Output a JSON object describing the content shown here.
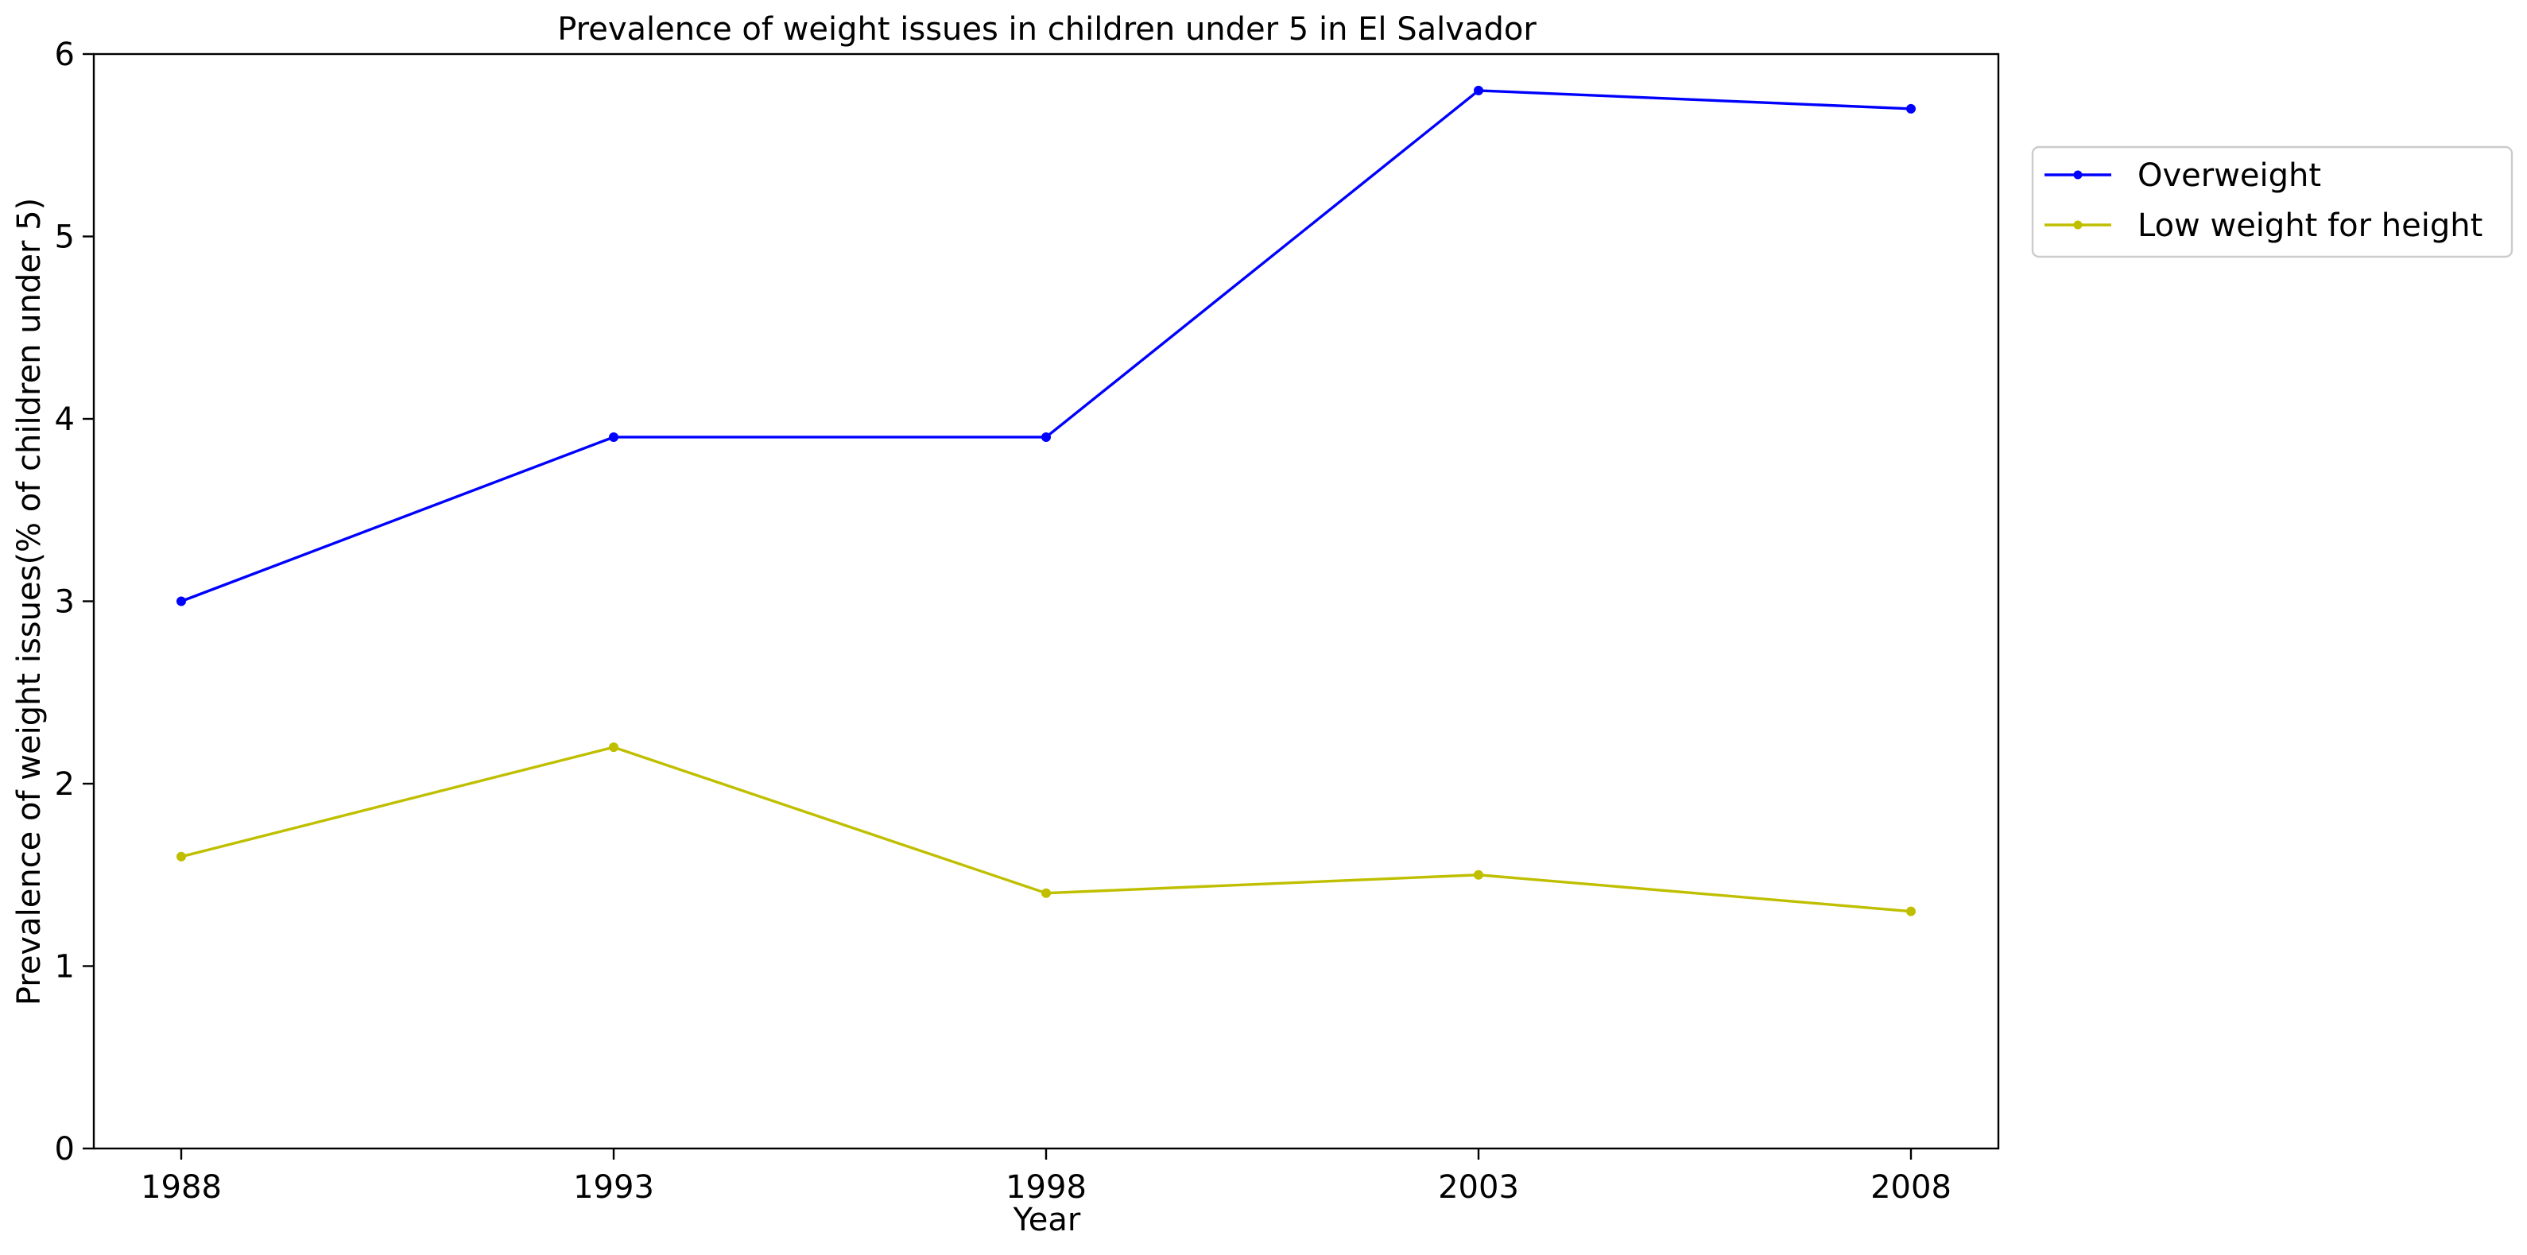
{
  "chart_data": {
    "type": "line",
    "title": "Prevalence of weight issues in children under 5 in El Salvador",
    "xlabel": "Year",
    "ylabel": "Prevalence of weight issues(% of children under 5)",
    "categories": [
      "1988",
      "1993",
      "1998",
      "2003",
      "2008"
    ],
    "ylim": [
      0,
      6
    ],
    "yticks": [
      "0",
      "1",
      "2",
      "3",
      "4",
      "5",
      "6"
    ],
    "grid": false,
    "legend_position": "outside-top-right",
    "series": [
      {
        "name": "Overweight",
        "color": "#0000ff",
        "values": [
          3.0,
          3.9,
          3.9,
          5.8,
          5.7
        ]
      },
      {
        "name": "Low weight for height",
        "color": "#bfbf00",
        "values": [
          1.6,
          2.2,
          1.4,
          1.5,
          1.3
        ]
      }
    ]
  }
}
